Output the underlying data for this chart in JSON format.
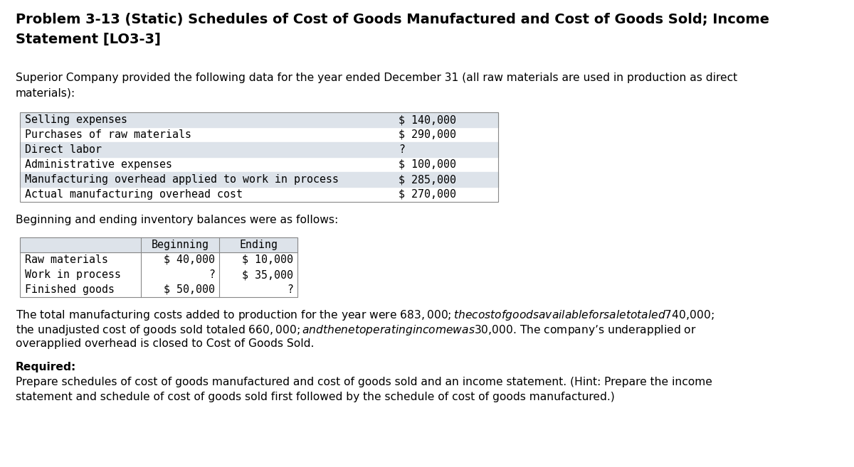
{
  "title_line1": "Problem 3-13 (Static) Schedules of Cost of Goods Manufactured and Cost of Goods Sold; Income",
  "title_line2": "Statement [LO3-3]",
  "intro_text_line1": "Superior Company provided the following data for the year ended December 31 (all raw materials are used in production as direct",
  "intro_text_line2": "materials):",
  "data_items": [
    [
      "Selling expenses",
      "$ 140,000"
    ],
    [
      "Purchases of raw materials",
      "$ 290,000"
    ],
    [
      "Direct labor",
      "?"
    ],
    [
      "Administrative expenses",
      "$ 100,000"
    ],
    [
      "Manufacturing overhead applied to work in process",
      "$ 285,000"
    ],
    [
      "Actual manufacturing overhead cost",
      "$ 270,000"
    ]
  ],
  "data_rows_shaded": [
    0,
    2,
    4
  ],
  "inventory_intro": "Beginning and ending inventory balances were as follows:",
  "inventory_headers": [
    "",
    "Beginning",
    "Ending"
  ],
  "inventory_rows": [
    [
      "Raw materials",
      "$ 40,000",
      "$ 10,000"
    ],
    [
      "Work in process",
      "?",
      "$ 35,000"
    ],
    [
      "Finished goods",
      "$ 50,000",
      "?"
    ]
  ],
  "closing_lines": [
    "The total manufacturing costs added to production for the year were $683,000; the cost of goods available for sale totaled $740,000;",
    "the unadjusted cost of goods sold totaled $660,000; and the net operating income was $30,000. The company’s underapplied or",
    "overapplied overhead is closed to Cost of Goods Sold."
  ],
  "required_label": "Required:",
  "required_lines": [
    "Prepare schedules of cost of goods manufactured and cost of goods sold and an income statement. (Hint: Prepare the income",
    "statement and schedule of cost of goods sold first followed by the schedule of cost of goods manufactured.)"
  ],
  "bg_color": "#ffffff",
  "shaded_color": "#dde3ea",
  "table_border_color": "#888888",
  "mono_font": "DejaVu Sans Mono",
  "sans_font": "DejaVu Sans",
  "title_fontsize": 14.0,
  "body_fontsize": 11.2,
  "mono_fontsize": 10.8
}
